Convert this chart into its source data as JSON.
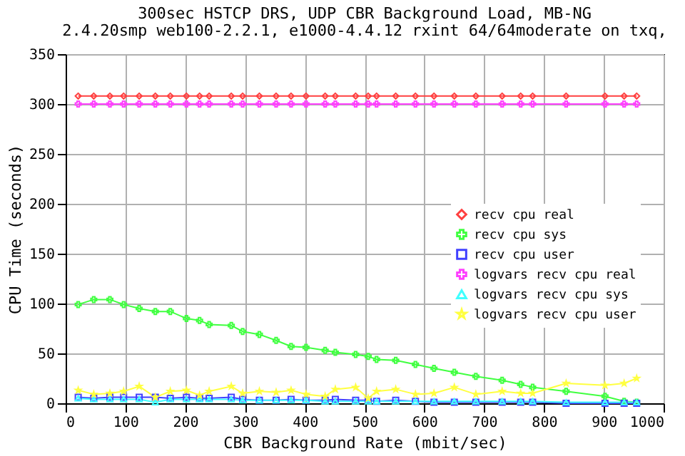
{
  "chart_data": {
    "type": "line",
    "title": "300sec HSTCP DRS, UDP CBR Background Load, MB-NG",
    "subtitle": "2.4.20smp web100-2.2.1, e1000-4.4.12 rxint 64/64moderate on txq,",
    "xlabel": "CBR Background Rate (mbit/sec)",
    "ylabel": "CPU Time (seconds)",
    "x": [
      21,
      47,
      74,
      97,
      123,
      150,
      175,
      202,
      224,
      240,
      277,
      296,
      324,
      352,
      377,
      402,
      434,
      451,
      485,
      506,
      520,
      552,
      585,
      616,
      650,
      686,
      730,
      761,
      781,
      837,
      902,
      934,
      955
    ],
    "series": [
      {
        "name": "recv cpu real",
        "color": "#ff4040",
        "marker": "diamond",
        "values": [
          308,
          308,
          308,
          308,
          308,
          308,
          308,
          308,
          308,
          308,
          308,
          308,
          308,
          308,
          308,
          308,
          308,
          308,
          308,
          308,
          308,
          308,
          308,
          308,
          308,
          308,
          308,
          308,
          308,
          308,
          308,
          308,
          308
        ]
      },
      {
        "name": "recv cpu sys",
        "color": "#40ff40",
        "marker": "cross",
        "values": [
          99,
          104,
          104,
          99,
          95,
          92,
          92,
          85,
          83,
          79,
          78,
          72,
          69,
          63,
          57,
          56,
          53,
          51,
          49,
          47,
          44,
          43,
          39,
          35,
          31,
          27,
          23,
          19,
          16,
          12,
          7,
          2,
          1
        ]
      },
      {
        "name": "recv cpu user",
        "color": "#4040ff",
        "marker": "square",
        "values": [
          6,
          5,
          6,
          6,
          6,
          6,
          5,
          6,
          5,
          5,
          6,
          4,
          3,
          3,
          4,
          3,
          3,
          4,
          3,
          3,
          2,
          3,
          2,
          1,
          1,
          1,
          1,
          1,
          1,
          0,
          0,
          0,
          0
        ]
      },
      {
        "name": "logvars recv cpu real",
        "color": "#ff40ff",
        "marker": "cross",
        "values": [
          300,
          300,
          300,
          300,
          300,
          300,
          300,
          300,
          300,
          300,
          300,
          300,
          300,
          300,
          300,
          300,
          300,
          300,
          300,
          300,
          300,
          300,
          300,
          300,
          300,
          300,
          300,
          300,
          300,
          300,
          300,
          300,
          300
        ]
      },
      {
        "name": "logvars recv cpu sys",
        "color": "#40ffff",
        "marker": "triangle",
        "values": [
          5,
          4,
          4,
          4,
          4,
          1,
          4,
          4,
          4,
          4,
          4,
          3,
          3,
          3,
          3,
          3,
          2,
          2,
          2,
          2,
          2,
          2,
          2,
          2,
          2,
          2,
          2,
          2,
          2,
          1,
          1,
          1,
          1
        ]
      },
      {
        "name": "logvars recv cpu user",
        "color": "#ffff40",
        "marker": "star",
        "values": [
          13,
          9,
          10,
          12,
          17,
          6,
          12,
          13,
          8,
          12,
          17,
          10,
          12,
          11,
          13,
          9,
          7,
          14,
          16,
          5,
          12,
          14,
          9,
          10,
          16,
          9,
          12,
          10,
          10,
          20,
          18,
          20,
          25
        ]
      }
    ],
    "xlim": [
      0,
      1000
    ],
    "xticks": [
      0,
      100,
      200,
      300,
      400,
      500,
      600,
      700,
      800,
      900,
      1000
    ],
    "ylim": [
      0,
      350
    ],
    "yticks": [
      0,
      50,
      100,
      150,
      200,
      250,
      300,
      350
    ],
    "grid": true,
    "legend": "right",
    "line_style": "solid"
  }
}
